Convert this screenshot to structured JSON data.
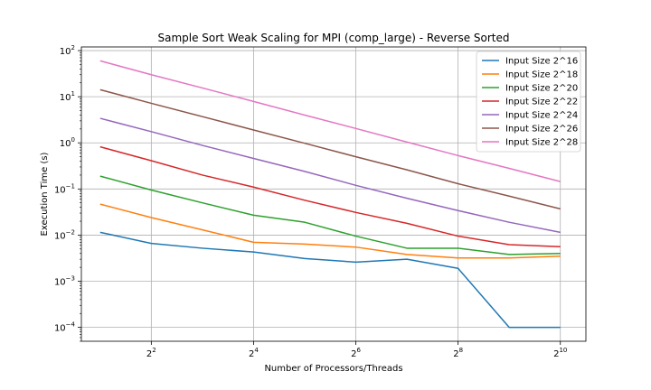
{
  "chart_data": {
    "type": "line",
    "title": "Sample Sort Weak Scaling for MPI (comp_large) - Reverse Sorted",
    "xlabel": "Number of Processors/Threads",
    "ylabel": "Execution Time (s)",
    "xscale": "log2",
    "yscale": "log10",
    "xlim": [
      1.55,
      1448
    ],
    "ylim": [
      5e-05,
      120
    ],
    "grid": true,
    "legend_position": "top-right",
    "x_ticks": [
      {
        "value": 4,
        "base": "2",
        "exp": "2"
      },
      {
        "value": 16,
        "base": "2",
        "exp": "4"
      },
      {
        "value": 64,
        "base": "2",
        "exp": "6"
      },
      {
        "value": 256,
        "base": "2",
        "exp": "8"
      },
      {
        "value": 1024,
        "base": "2",
        "exp": "10"
      }
    ],
    "y_ticks": [
      {
        "value": 0.0001,
        "base": "10",
        "exp": "−4"
      },
      {
        "value": 0.001,
        "base": "10",
        "exp": "−3"
      },
      {
        "value": 0.01,
        "base": "10",
        "exp": "−2"
      },
      {
        "value": 0.1,
        "base": "10",
        "exp": "−1"
      },
      {
        "value": 1,
        "base": "10",
        "exp": "0"
      },
      {
        "value": 10,
        "base": "10",
        "exp": "1"
      },
      {
        "value": 100,
        "base": "10",
        "exp": "2"
      }
    ],
    "x": [
      2,
      4,
      8,
      16,
      32,
      64,
      128,
      256,
      512,
      1024
    ],
    "series": [
      {
        "name": "Input Size 2^16",
        "color": "#1f77b4",
        "values": [
          0.0115,
          0.0066,
          0.0052,
          0.0043,
          0.0031,
          0.0026,
          0.003,
          0.0019,
          0.0001,
          0.0001
        ]
      },
      {
        "name": "Input Size 2^18",
        "color": "#ff7f0e",
        "values": [
          0.047,
          0.024,
          0.013,
          0.007,
          0.0064,
          0.0055,
          0.0038,
          0.0032,
          0.0032,
          0.0035
        ]
      },
      {
        "name": "Input Size 2^20",
        "color": "#2ca02c",
        "values": [
          0.19,
          0.095,
          0.05,
          0.027,
          0.019,
          0.0095,
          0.0052,
          0.0052,
          0.0038,
          0.004
        ]
      },
      {
        "name": "Input Size 2^22",
        "color": "#d62728",
        "values": [
          0.82,
          0.41,
          0.2,
          0.11,
          0.057,
          0.031,
          0.018,
          0.0095,
          0.0062,
          0.0056
        ]
      },
      {
        "name": "Input Size 2^24",
        "color": "#9467bd",
        "values": [
          3.4,
          1.75,
          0.88,
          0.46,
          0.24,
          0.12,
          0.063,
          0.034,
          0.019,
          0.0115
        ]
      },
      {
        "name": "Input Size 2^26",
        "color": "#8c564b",
        "values": [
          14.2,
          7.2,
          3.7,
          1.9,
          0.98,
          0.5,
          0.26,
          0.13,
          0.07,
          0.037
        ]
      },
      {
        "name": "Input Size 2^28",
        "color": "#e377c2",
        "values": [
          60,
          30,
          15.5,
          7.9,
          4.0,
          2.05,
          1.04,
          0.53,
          0.28,
          0.145
        ]
      }
    ]
  }
}
